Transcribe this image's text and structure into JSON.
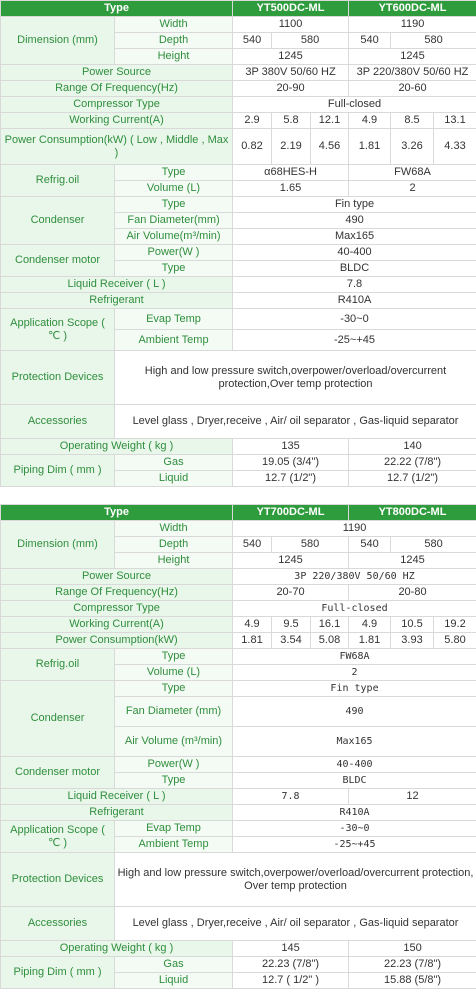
{
  "t1": {
    "type": "Type",
    "m1": "YT500DC-ML",
    "m2": "YT600DC-ML",
    "dimension": "Dimension\n(mm)",
    "width": "Width",
    "w1": "1100",
    "w2": "1190",
    "depth": "Depth",
    "d1a": "540",
    "d1b": "580",
    "d2a": "540",
    "d2b": "580",
    "height": "Height",
    "h1": "1245",
    "h2": "1245",
    "power_source": "Power Source",
    "ps1": "3P 380V 50/60 HZ",
    "ps2": "3P 220/380V 50/60 HZ",
    "freq": "Range Of Frequency(Hz)",
    "f1": "20-90",
    "f2": "20-60",
    "comp": "Compressor Type",
    "comp_v": "Full-closed",
    "current": "Working Current(A)",
    "c": [
      "2.9",
      "5.8",
      "12.1",
      "4.9",
      "8.5",
      "13.1"
    ],
    "consumption": "Power Consumption(kW)\n( Low , Middle , Max )",
    "p": [
      "0.82",
      "2.19",
      "4.56",
      "1.81",
      "3.26",
      "4.33"
    ],
    "refrig_oil": "Refrig.oil",
    "oil_type": "Type",
    "ot1": "α68HES-H",
    "ot2": "FW68A",
    "oil_vol": "Volume (L)",
    "ov1": "1.65",
    "ov2": "2",
    "condenser": "Condenser",
    "cond_type": "Type",
    "cond_type_v": "Fin type",
    "fan_dia": "Fan Diameter(mm)",
    "fan_dia_v": "490",
    "air_vol": "Air Volume(m³/min)",
    "air_vol_v": "Max165",
    "cond_motor": "Condenser motor",
    "power_w": "Power(W )",
    "power_w_v": "40-400",
    "motor_type": "Type",
    "motor_type_v": "BLDC",
    "liquid": "Liquid Receiver ( L )",
    "liquid_v": "7.8",
    "refrigerant": "Refrigerant",
    "refrigerant_v": "R410A",
    "app_scope": "Application Scope\n( ℃ )",
    "evap": "Evap Temp",
    "evap_v": "-30~0",
    "ambient": "Ambient Temp",
    "ambient_v": "-25~+45",
    "protection": "Protection Devices",
    "protection_v": "High and low pressure switch,overpower/overload/overcurrent\nprotection,Over temp protection",
    "accessories": "Accessories",
    "accessories_v": "Level glass , Dryer,receive , Air/ oil separator , Gas-liquid separator",
    "weight": "Operating Weight ( kg )",
    "wt1": "135",
    "wt2": "140",
    "piping": "Piping Dim\n( mm )",
    "gas": "Gas",
    "g1": "19.05 (3/4\")",
    "g2": "22.22 (7/8\")",
    "liq": "Liquid",
    "l1": "12.7 (1/2\")",
    "l2": "12.7 (1/2\")"
  },
  "t2": {
    "type": "Type",
    "m1": "YT700DC-ML",
    "m2": "YT800DC-ML",
    "dimension": "Dimension\n(mm)",
    "width": "Width",
    "w": "1190",
    "depth": "Depth",
    "d1a": "540",
    "d1b": "580",
    "d2a": "540",
    "d2b": "580",
    "height": "Height",
    "h1": "1245",
    "h2": "1245",
    "power_source": "Power Source",
    "ps": "3P 220/380V 50/60 HZ",
    "freq": "Range Of Frequency(Hz)",
    "f1": "20-70",
    "f2": "20-80",
    "comp": "Compressor Type",
    "comp_v": "Full-closed",
    "current": "Working Current(A)",
    "c": [
      "4.9",
      "9.5",
      "16.1",
      "4.9",
      "10.5",
      "19.2"
    ],
    "consumption": "Power Consumption(kW)",
    "p": [
      "1.81",
      "3.54",
      "5.08",
      "1.81",
      "3.93",
      "5.80"
    ],
    "refrig_oil": "Refrig.oil",
    "oil_type": "Type",
    "ot": "FW68A",
    "oil_vol": "Volume (L)",
    "ov": "2",
    "condenser": "Condenser",
    "cond_type": "Type",
    "cond_type_v": "Fin type",
    "fan_dia": "Fan Diameter\n(mm)",
    "fan_dia_v": "490",
    "air_vol": "Air Volume\n(m³/min)",
    "air_vol_v": "Max165",
    "cond_motor": "Condenser motor",
    "power_w": "Power(W )",
    "power_w_v": "40-400",
    "motor_type": "Type",
    "motor_type_v": "BLDC",
    "liquid": "Liquid Receiver ( L )",
    "lq1": "7.8",
    "lq2": "12",
    "refrigerant": "Refrigerant",
    "refrigerant_v": "R410A",
    "app_scope": "Application Scope\n( ℃ )",
    "evap": "Evap Temp",
    "evap_v": "-30~0",
    "ambient": "Ambient Temp",
    "ambient_v": "-25~+45",
    "protection": "Protection Devices",
    "protection_v": "High and low pressure switch,overpower/overload/overcurrent\nprotection,\nOver temp protection",
    "accessories": "Accessories",
    "accessories_v": "Level glass , Dryer,receive , Air/ oil separator ,\nGas-liquid separator",
    "weight": "Operating Weight ( kg )",
    "wt1": "145",
    "wt2": "150",
    "piping": "Piping Dim\n( mm )",
    "gas": "Gas",
    "g1": "22.23 (7/8\")",
    "g2": "22.23 (7/8\")",
    "liq": "Liquid",
    "l1": "12.7 ( 1/2\" )",
    "l2": "15.88 (5/8\")"
  }
}
